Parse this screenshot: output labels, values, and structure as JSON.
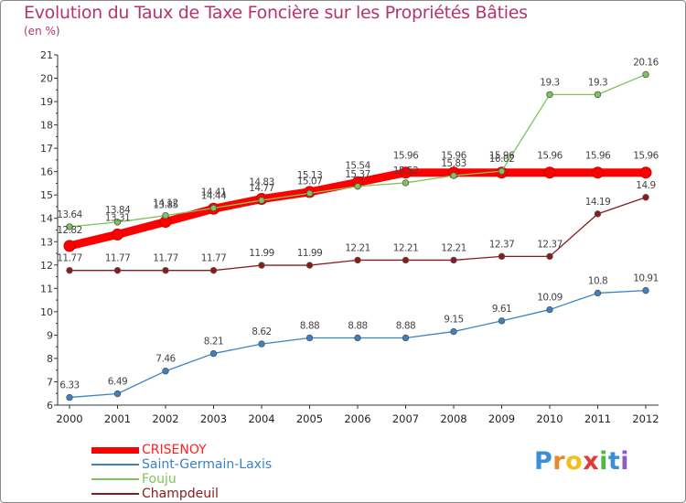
{
  "title": "Evolution du Taux de Taxe Foncière sur les Propriétés Bâties",
  "unit_label": "(en %)",
  "logo": {
    "letters": [
      "P",
      "r",
      "o",
      "x",
      "i",
      "t",
      "i"
    ],
    "colors": [
      "#3a8fd6",
      "#e8872b",
      "#f0c020",
      "#e23a3a",
      "#4cb848",
      "#3a8fd6",
      "#8e5bc2"
    ]
  },
  "chart_data": {
    "type": "line",
    "x": [
      "2000",
      "2001",
      "2002",
      "2003",
      "2004",
      "2005",
      "2006",
      "2007",
      "2008",
      "2009",
      "2010",
      "2011",
      "2012"
    ],
    "ylim": [
      6,
      21
    ],
    "yticks": [
      "6",
      "7",
      "8",
      "9",
      "10",
      "11",
      "12",
      "13",
      "14",
      "15",
      "16",
      "17",
      "18",
      "19",
      "20",
      "21"
    ],
    "grid": false,
    "legend_position": "bottom-left",
    "series": [
      {
        "name": "CRISENOY",
        "color": "#ff0000",
        "values": [
          12.82,
          13.31,
          13.85,
          14.41,
          14.83,
          15.13,
          15.54,
          15.96,
          15.96,
          15.96,
          15.96,
          15.96,
          15.96
        ],
        "labels": [
          "12.82",
          "13.31",
          "13.85",
          "14.41",
          "14.83",
          "15.13",
          "15.54",
          "15.96",
          "15.96",
          "15.96",
          "15.96",
          "15.96",
          "15.96"
        ]
      },
      {
        "name": "Saint-Germain-Laxis",
        "color": "#3b82c4",
        "values": [
          6.33,
          6.49,
          7.46,
          8.21,
          8.62,
          8.88,
          8.88,
          8.88,
          9.15,
          9.61,
          10.09,
          10.8,
          10.91
        ],
        "labels": [
          "6.33",
          "6.49",
          "7.46",
          "8.21",
          "8.62",
          "8.88",
          "8.88",
          "8.88",
          "9.15",
          "9.61",
          "10.09",
          "10.8",
          "10.91"
        ]
      },
      {
        "name": "Fouju",
        "color": "#7dc65a",
        "values": [
          13.64,
          13.84,
          14.12,
          14.44,
          14.77,
          15.07,
          15.37,
          15.52,
          15.83,
          16.02,
          19.3,
          19.3,
          20.16
        ],
        "labels": [
          "13.64",
          "13.84",
          "14.12",
          "14.44",
          "14.77",
          "15.07",
          "15.37",
          "15.52",
          "15.83",
          "16.02",
          "19.3",
          "19.3",
          "20.16"
        ]
      },
      {
        "name": "Champdeuil",
        "color": "#8b1a1a",
        "values": [
          11.77,
          11.77,
          11.77,
          11.77,
          11.99,
          11.99,
          12.21,
          12.21,
          12.21,
          12.37,
          12.37,
          14.19,
          14.9
        ],
        "labels": [
          "11.77",
          "11.77",
          "11.77",
          "11.77",
          "11.99",
          "11.99",
          "12.21",
          "12.21",
          "12.21",
          "12.37",
          "12.37",
          "14.19",
          "14.9"
        ]
      }
    ]
  }
}
